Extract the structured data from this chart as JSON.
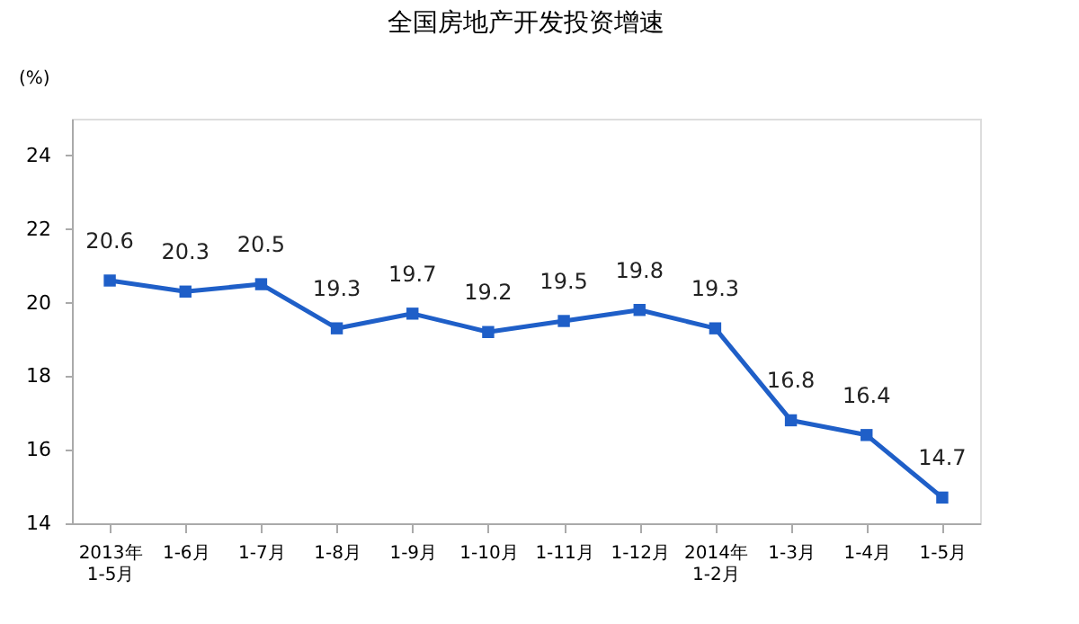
{
  "chart_data": {
    "type": "line",
    "title": "全国房地产开发投资增速",
    "ylabel": "(%)",
    "categories": [
      "2013年\n1-5月",
      "1-6月",
      "1-7月",
      "1-8月",
      "1-9月",
      "1-10月",
      "1-11月",
      "1-12月",
      "2014年\n1-2月",
      "1-3月",
      "1-4月",
      "1-5月"
    ],
    "series": [
      {
        "color": "#1f5fc8",
        "values": [
          20.6,
          20.3,
          20.5,
          19.3,
          19.7,
          19.2,
          19.5,
          19.8,
          19.3,
          16.8,
          16.4,
          14.7
        ]
      }
    ],
    "ylim": [
      14,
      25
    ],
    "yticks": [
      14,
      16,
      18,
      20,
      22,
      24
    ],
    "marker": "square",
    "data_labels": true,
    "grid": false,
    "legend": false
  }
}
